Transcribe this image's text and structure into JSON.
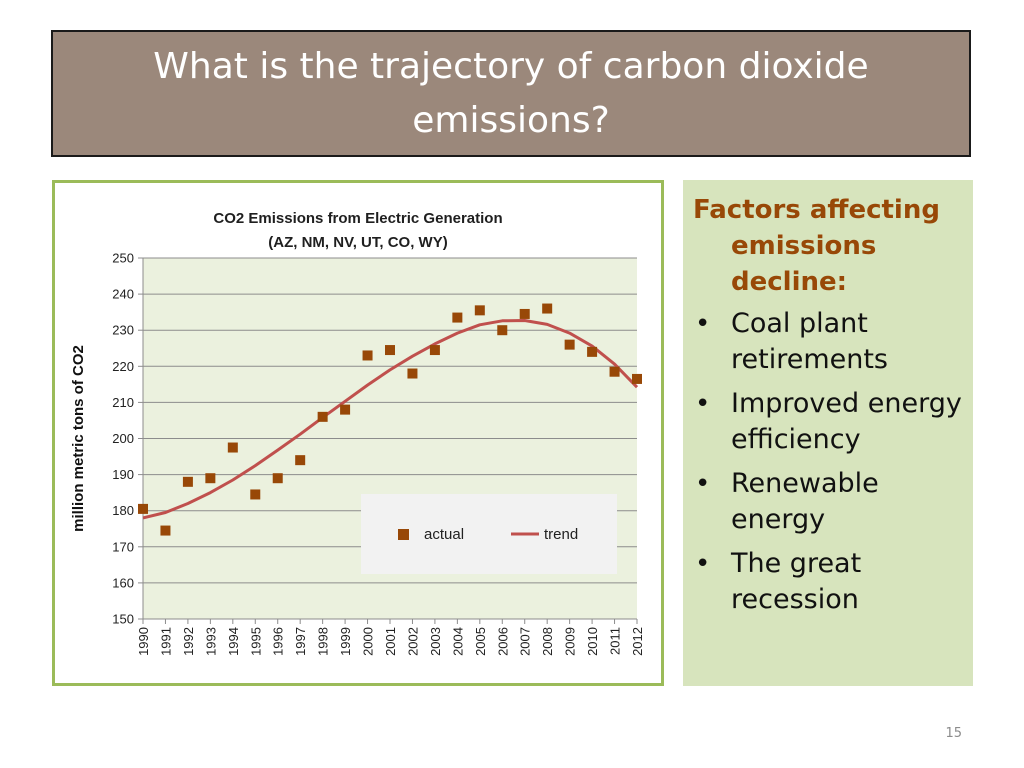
{
  "slide": {
    "title": "What is the trajectory of carbon dioxide emissions?",
    "page_number": "15"
  },
  "sidebar": {
    "heading": "Factors affecting emissions decline:",
    "bullets": [
      "Coal plant retirements",
      "Improved energy efficiency",
      "Renewable energy",
      "The great recession"
    ]
  },
  "colors": {
    "title_bg": "#9b887b",
    "chart_border": "#9bbb59",
    "plot_bg": "#ebf1de",
    "marker": "#984807",
    "trend": "#c0504d",
    "side_bg": "#d7e4bd",
    "heading": "#984807"
  },
  "chart_data": {
    "type": "scatter",
    "title": "CO2 Emissions from Electric Generation",
    "subtitle": "(AZ, NM, NV, UT, CO, WY)",
    "ylabel": "million metric tons of CO2",
    "xlabel": "",
    "ylim": [
      150,
      250
    ],
    "yticks": [
      "150",
      "160",
      "170",
      "180",
      "190",
      "200",
      "210",
      "220",
      "230",
      "240",
      "250"
    ],
    "categories": [
      "1990",
      "1991",
      "1992",
      "1993",
      "1994",
      "1995",
      "1996",
      "1997",
      "1998",
      "1999",
      "2000",
      "2001",
      "2002",
      "2003",
      "2004",
      "2005",
      "2006",
      "2007",
      "2008",
      "2009",
      "2010",
      "2011",
      "2012"
    ],
    "grid": "horizontal",
    "legend_position": "inside-bottom-right",
    "series": [
      {
        "name": "actual",
        "kind": "markers",
        "values": [
          180.5,
          174.5,
          188,
          189,
          197.5,
          184.5,
          189,
          194,
          206,
          208,
          223,
          224.5,
          218,
          224.5,
          233.5,
          235.5,
          230,
          234.5,
          236,
          226,
          224,
          218.5,
          216.5
        ]
      },
      {
        "name": "trend",
        "kind": "line",
        "values": [
          178,
          179.5,
          182,
          185,
          188.5,
          192.5,
          196.8,
          201.2,
          205.8,
          210.3,
          214.8,
          219,
          222.8,
          226.2,
          229.2,
          231.5,
          232.6,
          232.7,
          231.6,
          229.2,
          225.6,
          220.6,
          214.2
        ]
      }
    ]
  }
}
